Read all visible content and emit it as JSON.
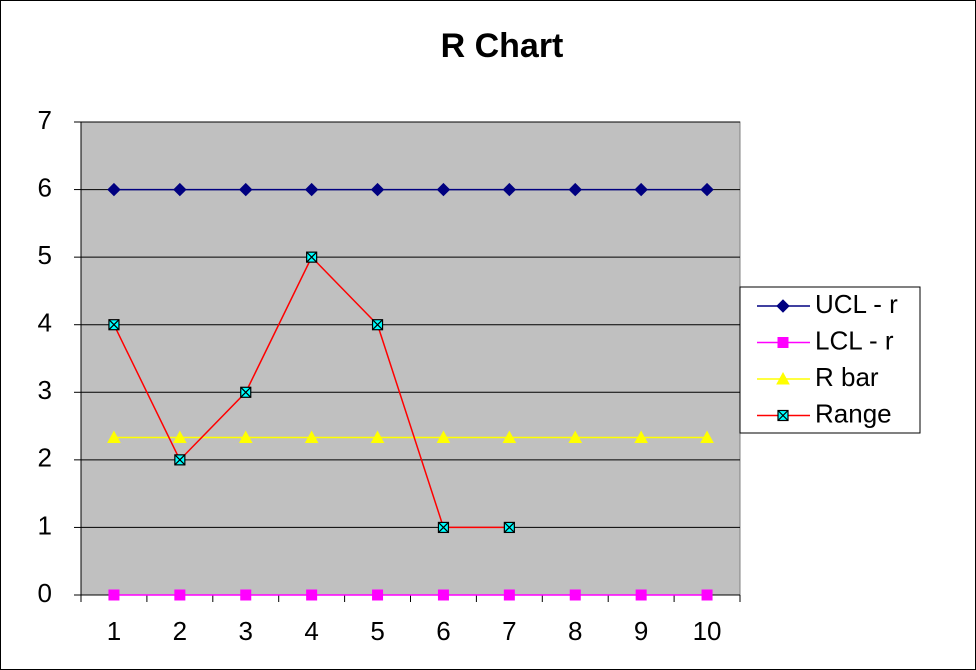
{
  "chart_data": {
    "type": "line",
    "title": "R Chart",
    "categories": [
      "1",
      "2",
      "3",
      "4",
      "5",
      "6",
      "7",
      "8",
      "9",
      "10"
    ],
    "series": [
      {
        "name": "UCL - r",
        "color": "#000080",
        "marker": "diamond",
        "marker_color": "#000080",
        "values": [
          6.0,
          6.0,
          6.0,
          6.0,
          6.0,
          6.0,
          6.0,
          6.0,
          6.0,
          6.0
        ]
      },
      {
        "name": "LCL - r",
        "color": "#FF00FF",
        "marker": "square",
        "marker_color": "#FF00FF",
        "values": [
          0,
          0,
          0,
          0,
          0,
          0,
          0,
          0,
          0,
          0
        ]
      },
      {
        "name": "R bar",
        "color": "#FFFF00",
        "marker": "triangle",
        "marker_color": "#FFFF00",
        "values": [
          2.33,
          2.33,
          2.33,
          2.33,
          2.33,
          2.33,
          2.33,
          2.33,
          2.33,
          2.33
        ]
      },
      {
        "name": "Range",
        "color": "#FF0000",
        "marker": "x-square",
        "marker_color": "#00FFFF",
        "values": [
          4,
          2,
          3,
          5,
          4,
          1,
          1,
          null,
          null,
          null
        ]
      }
    ],
    "ylim": [
      0,
      7
    ],
    "yticks": [
      0,
      1,
      2,
      3,
      4,
      5,
      6,
      7
    ],
    "grid": true,
    "legend": "right",
    "plot_background": "#C0C0C0"
  }
}
